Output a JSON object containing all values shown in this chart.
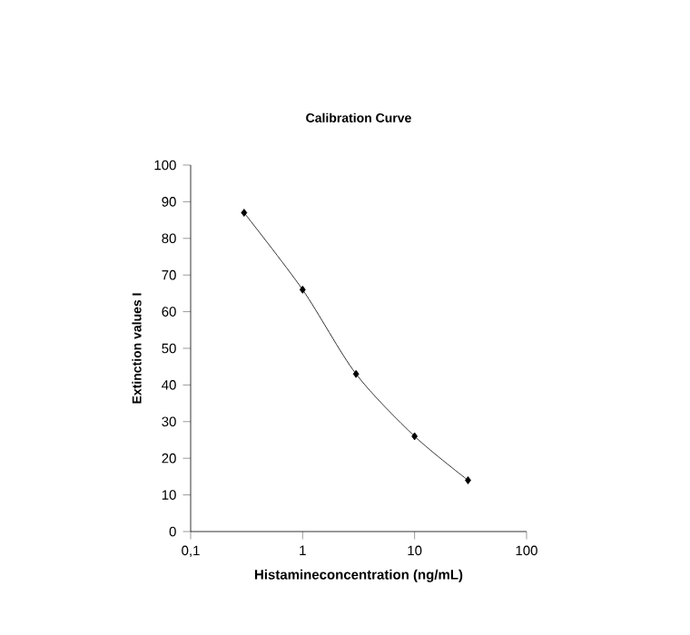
{
  "chart_data": {
    "type": "line",
    "title": "Calibration Curve",
    "xlabel": "Histamineconcentration (ng/mL)",
    "ylabel": "Extinction values I",
    "x": [
      0.3,
      1,
      3,
      10,
      30
    ],
    "series": [
      {
        "color": "#000000",
        "values": [
          87,
          66,
          43,
          26,
          14
        ]
      }
    ],
    "log": "x",
    "xlim": [
      0.1,
      100
    ],
    "xticks": [
      {
        "value": 0.1,
        "label": "0,1"
      },
      1,
      10,
      100
    ],
    "ylim": [
      0,
      100
    ],
    "yticks": [
      0,
      10,
      20,
      30,
      40,
      50,
      60,
      70,
      80,
      90,
      100
    ],
    "grid": false,
    "marker": "diamond",
    "line_style": "solid"
  }
}
